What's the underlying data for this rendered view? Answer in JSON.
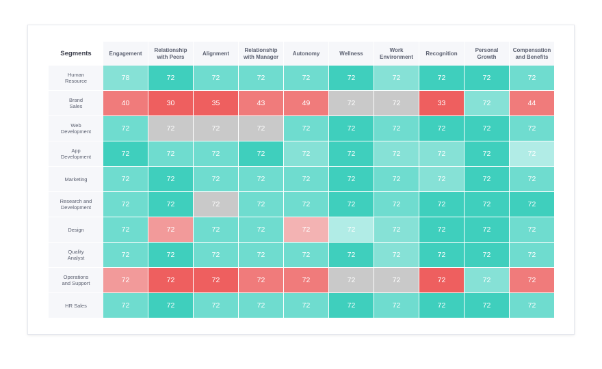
{
  "heatmap": {
    "corner_label": "Segments",
    "columns": [
      "Engagement",
      "Relationship\nwith Peers",
      "Alignment",
      "Relationship\nwith Manager",
      "Autonomy",
      "Wellness",
      "Work\nEnvironment",
      "Recognition",
      "Personal\nGrowth",
      "Compensation\nand Benefits"
    ],
    "rows": [
      "Human\nResource",
      "Brand\nSales",
      "Web\nDevelopment",
      "App\nDevelopment",
      "Marketing",
      "Research and\nDevelopment",
      "Design",
      "Quality\nAnalyst",
      "Operations\nand Support",
      "HR Sales"
    ]
  },
  "palette": {
    "teal-dark": "#3fcfbd",
    "teal": "#57d7c7",
    "teal-mid": "#6fdccf",
    "teal-light": "#86e1d6",
    "teal-pale": "#b1ece6",
    "gray": "#c9c9c9",
    "red": "#ee5f5f",
    "red-mid": "#f07b7b",
    "red-light": "#f29a9a",
    "pink": "#f3b3b3"
  },
  "chart_data": {
    "type": "heatmap",
    "x_categories": [
      "Engagement",
      "Relationship with Peers",
      "Alignment",
      "Relationship with Manager",
      "Autonomy",
      "Wellness",
      "Work Environment",
      "Recognition",
      "Personal Growth",
      "Compensation and Benefits"
    ],
    "y_categories": [
      "Human Resource",
      "Brand Sales",
      "Web Development",
      "App Development",
      "Marketing",
      "Research and Development",
      "Design",
      "Quality Analyst",
      "Operations and Support",
      "HR Sales"
    ],
    "values": [
      [
        78,
        72,
        72,
        72,
        72,
        72,
        72,
        72,
        72,
        72
      ],
      [
        40,
        30,
        35,
        43,
        49,
        72,
        72,
        33,
        72,
        44
      ],
      [
        72,
        72,
        72,
        72,
        72,
        72,
        72,
        72,
        72,
        72
      ],
      [
        72,
        72,
        72,
        72,
        72,
        72,
        72,
        72,
        72,
        72
      ],
      [
        72,
        72,
        72,
        72,
        72,
        72,
        72,
        72,
        72,
        72
      ],
      [
        72,
        72,
        72,
        72,
        72,
        72,
        72,
        72,
        72,
        72
      ],
      [
        72,
        72,
        72,
        72,
        72,
        72,
        72,
        72,
        72,
        72
      ],
      [
        72,
        72,
        72,
        72,
        72,
        72,
        72,
        72,
        72,
        72
      ],
      [
        72,
        72,
        72,
        72,
        72,
        72,
        72,
        72,
        72,
        72
      ],
      [
        72,
        72,
        72,
        72,
        72,
        72,
        72,
        72,
        72,
        72
      ]
    ],
    "colors": [
      [
        "teal-light",
        "teal-dark",
        "teal-mid",
        "teal-mid",
        "teal-mid",
        "teal-dark",
        "teal-light",
        "teal-dark",
        "teal-dark",
        "teal-mid"
      ],
      [
        "red-mid",
        "red",
        "red",
        "red-mid",
        "red-mid",
        "gray",
        "gray",
        "red",
        "teal-light",
        "red-mid"
      ],
      [
        "teal-mid",
        "gray",
        "gray",
        "gray",
        "teal-mid",
        "teal-dark",
        "teal-mid",
        "teal-dark",
        "teal-dark",
        "teal-mid"
      ],
      [
        "teal-dark",
        "teal-mid",
        "teal-mid",
        "teal-dark",
        "teal-light",
        "teal-dark",
        "teal-light",
        "teal-light",
        "teal-dark",
        "teal-pale"
      ],
      [
        "teal-mid",
        "teal-dark",
        "teal-mid",
        "teal-mid",
        "teal-mid",
        "teal-dark",
        "teal-mid",
        "teal-light",
        "teal-dark",
        "teal-mid"
      ],
      [
        "teal-mid",
        "teal-dark",
        "gray",
        "teal-mid",
        "teal-mid",
        "teal-dark",
        "teal-mid",
        "teal-dark",
        "teal-dark",
        "teal-dark"
      ],
      [
        "teal-mid",
        "red-light",
        "teal-mid",
        "teal-mid",
        "pink",
        "teal-pale",
        "teal-light",
        "teal-dark",
        "teal-dark",
        "teal-mid"
      ],
      [
        "teal-mid",
        "teal-dark",
        "teal-mid",
        "teal-mid",
        "teal-mid",
        "teal-dark",
        "teal-light",
        "teal-dark",
        "teal-dark",
        "teal-mid"
      ],
      [
        "red-light",
        "red",
        "red",
        "red-mid",
        "red-mid",
        "gray",
        "gray",
        "red",
        "teal-light",
        "red-mid"
      ],
      [
        "teal-mid",
        "teal-dark",
        "teal-mid",
        "teal-mid",
        "teal-mid",
        "teal-dark",
        "teal-mid",
        "teal-dark",
        "teal-dark",
        "teal-mid"
      ]
    ]
  }
}
